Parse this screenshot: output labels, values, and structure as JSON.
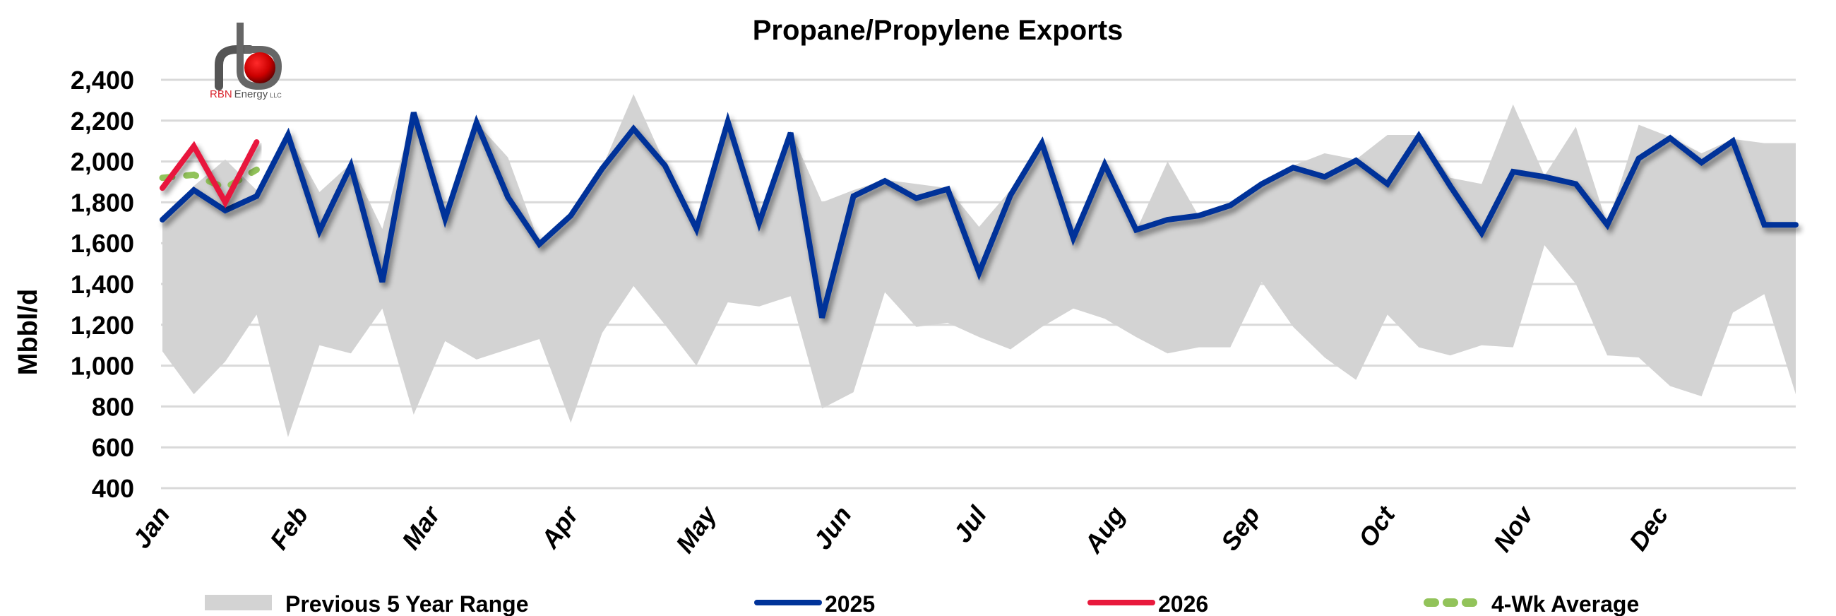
{
  "chart_data": {
    "type": "line",
    "title": "Propane/Propylene Exports",
    "xlabel": "",
    "ylabel": "Mbbl/d",
    "ylim": [
      400,
      2400
    ],
    "yticks": [
      400,
      600,
      800,
      1000,
      1200,
      1400,
      1600,
      1800,
      2000,
      2200,
      2400
    ],
    "ytick_labels": [
      "400",
      "600",
      "800",
      "1,000",
      "1,200",
      "1,400",
      "1,600",
      "1,800",
      "2,000",
      "2,200",
      "2,400"
    ],
    "x_tick_labels": [
      "Jan",
      "Feb",
      "Mar",
      "Apr",
      "May",
      "Jun",
      "Jul",
      "Aug",
      "Sep",
      "Oct",
      "Nov",
      "Dec"
    ],
    "x_tick_weeks": [
      0,
      4.4,
      8.6,
      13,
      17.4,
      21.7,
      26,
      30.4,
      34.7,
      39,
      43.4,
      47.7
    ],
    "grid": true,
    "legend_position": "bottom",
    "x_weeks": 53,
    "series": [
      {
        "name": "Previous 5 Year Range",
        "kind": "range-area",
        "color": "#d3d3d3",
        "max": [
          1720,
          1880,
          2010,
          1860,
          2130,
          1850,
          1990,
          1670,
          2240,
          1720,
          2190,
          2020,
          1600,
          1740,
          1970,
          2330,
          1990,
          1680,
          2200,
          1700,
          2150,
          1800,
          1860,
          1910,
          1890,
          1870,
          1680,
          1860,
          2090,
          1650,
          1990,
          1660,
          2000,
          1730,
          1790,
          1890,
          1980,
          2040,
          2010,
          2130,
          2130,
          1920,
          1890,
          2280,
          1930,
          2170,
          1690,
          2180,
          2120,
          2040,
          2110,
          2090,
          2090
        ],
        "min": [
          1070,
          860,
          1020,
          1250,
          650,
          1100,
          1060,
          1280,
          760,
          1120,
          1030,
          1080,
          1130,
          720,
          1160,
          1390,
          1200,
          1000,
          1310,
          1290,
          1340,
          790,
          870,
          1360,
          1190,
          1210,
          1140,
          1080,
          1190,
          1280,
          1230,
          1140,
          1060,
          1090,
          1090,
          1410,
          1190,
          1040,
          930,
          1250,
          1090,
          1050,
          1100,
          1090,
          1590,
          1400,
          1050,
          1040,
          900,
          850,
          1260,
          1350,
          860
        ]
      },
      {
        "name": "2025",
        "color": "#003399",
        "values": [
          1715,
          1860,
          1760,
          1830,
          2130,
          1660,
          1980,
          1410,
          2240,
          1720,
          2190,
          1825,
          1595,
          1735,
          1965,
          2160,
          1980,
          1670,
          2195,
          1700,
          2140,
          1235,
          1830,
          1905,
          1820,
          1865,
          1455,
          1835,
          2090,
          1625,
          1985,
          1665,
          1715,
          1735,
          1785,
          1890,
          1970,
          1925,
          2005,
          1890,
          2125,
          1880,
          1650,
          1950,
          1925,
          1890,
          1690,
          2015,
          2115,
          1995,
          2100,
          1690,
          1690
        ]
      },
      {
        "name": "2026",
        "color": "#e8193c",
        "values": [
          1870,
          2075,
          1800,
          2095
        ]
      },
      {
        "name": "4-Wk Average",
        "color": "#92c35a",
        "dashed": true,
        "values": [
          1920,
          1935,
          1870,
          1960
        ]
      }
    ]
  },
  "logo": {
    "brand": "RBN",
    "name": "Energy",
    "suffix": "LLC"
  },
  "legend": {
    "items": [
      {
        "label": "Previous 5 Year Range",
        "icon": "range-swatch-icon"
      },
      {
        "label": "2025",
        "icon": "line-swatch-icon"
      },
      {
        "label": "2026",
        "icon": "line-swatch-icon"
      },
      {
        "label": "4-Wk Average",
        "icon": "dashed-line-swatch-icon"
      }
    ]
  }
}
